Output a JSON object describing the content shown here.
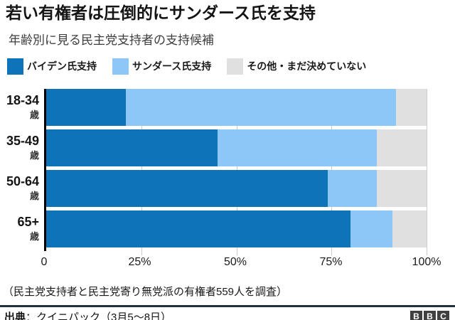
{
  "header": {
    "title": "若い有権者は圧倒的にサンダース氏を支持",
    "subtitle": "年齢別に見る民主党支持者の支持候補"
  },
  "legend": [
    {
      "key": "biden",
      "label": "バイデン氏支持",
      "color": "#0e73b9"
    },
    {
      "key": "sanders",
      "label": "サンダース氏支持",
      "color": "#8cc7f7"
    },
    {
      "key": "other",
      "label": "その他・まだ決めていない",
      "color": "#e0e0e0"
    }
  ],
  "chart_data": {
    "type": "bar",
    "orientation": "horizontal",
    "stacked": true,
    "categories": [
      "18-34",
      "35-49",
      "50-64",
      "65+"
    ],
    "category_suffix": "歳",
    "series": [
      {
        "key": "biden",
        "name": "バイデン氏支持",
        "color": "#0e73b9",
        "values": [
          21,
          45,
          74,
          80
        ]
      },
      {
        "key": "sanders",
        "name": "サンダース氏支持",
        "color": "#8cc7f7",
        "values": [
          71,
          42,
          13,
          11
        ]
      },
      {
        "key": "other",
        "name": "その他・まだ決めていない",
        "color": "#e0e0e0",
        "values": [
          8,
          13,
          13,
          9
        ]
      }
    ],
    "x_ticks": [
      "0",
      "25%",
      "50%",
      "75%",
      "100%"
    ],
    "xlim": [
      0,
      100
    ],
    "grid": true,
    "legend_position": "top"
  },
  "footnote": "（民主党支持者と民主党寄り無党派の有権者559人を調査）",
  "source": {
    "label": "出典",
    "separator": "：",
    "text": "クイニパック（3月5～8日）"
  },
  "logo": {
    "letters": [
      "B",
      "B",
      "C"
    ]
  }
}
